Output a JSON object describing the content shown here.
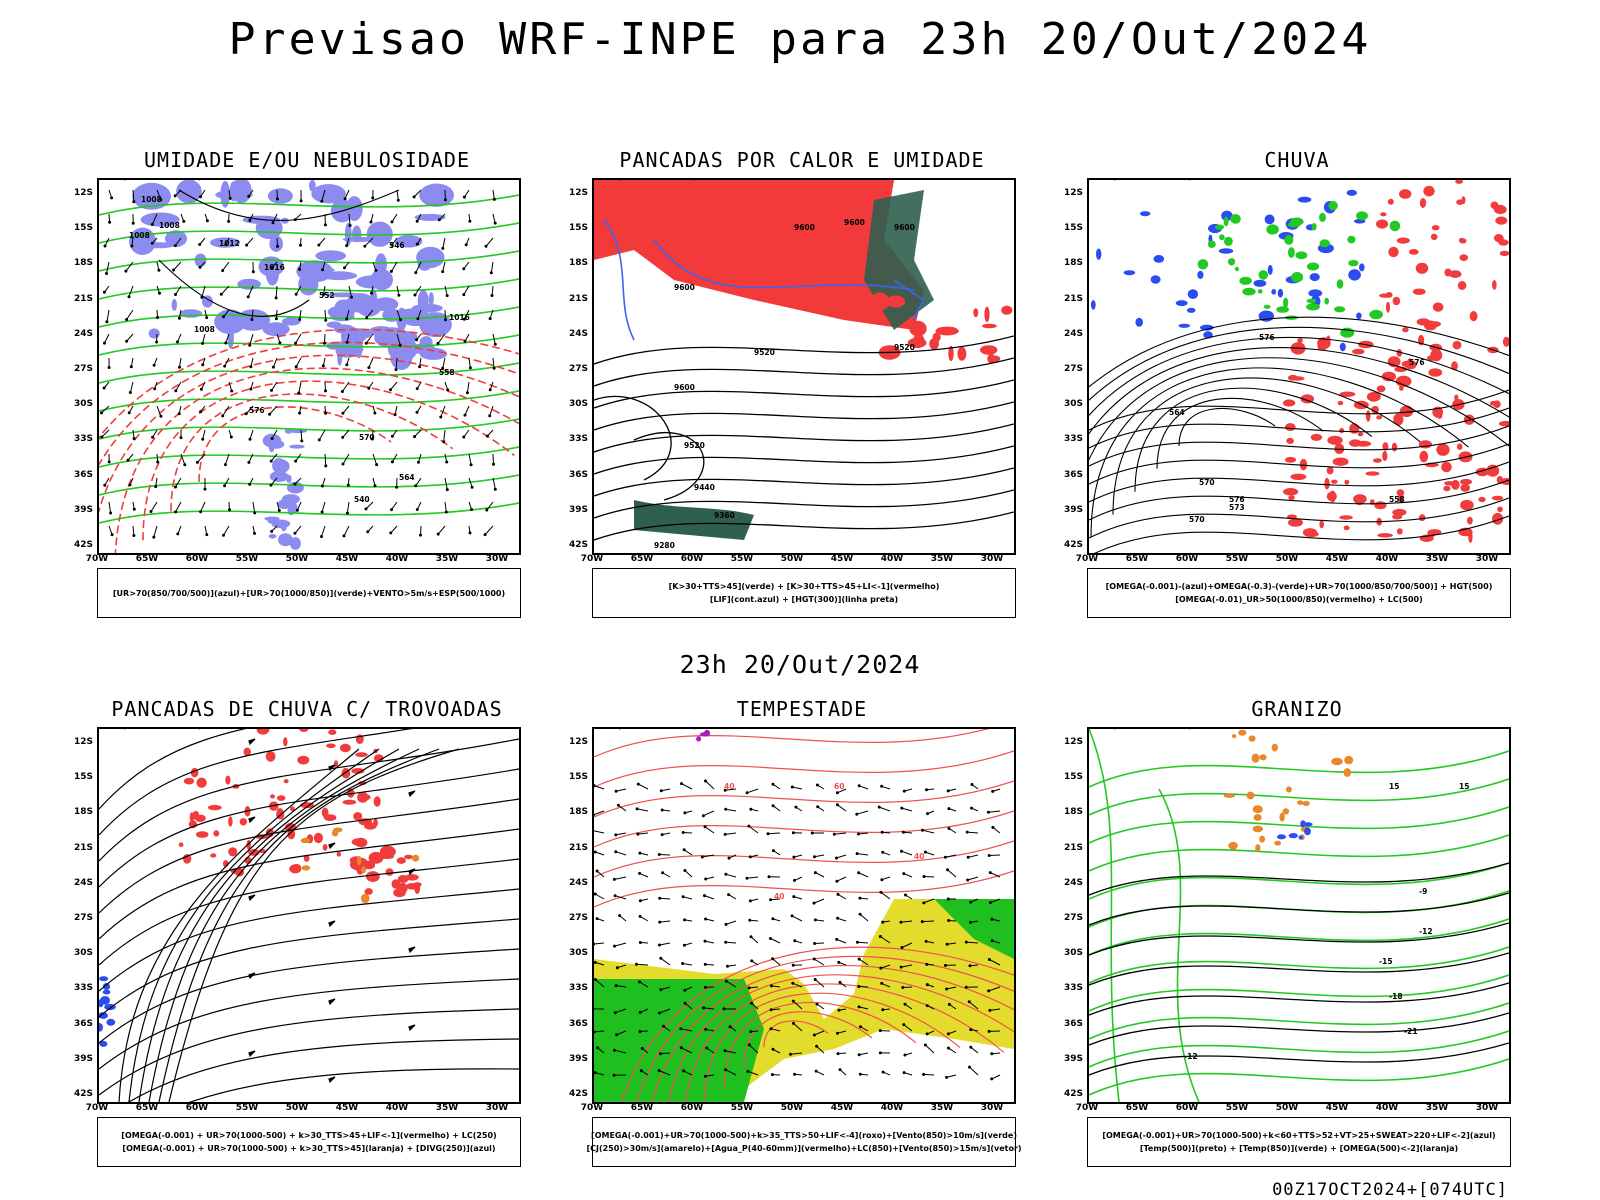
{
  "title": "Previsao WRF-INPE  para 23h 20/Out/2024",
  "middle_title": "23h 20/Out/2024",
  "footer": "00Z17OCT2024+[074UTC]",
  "axes": {
    "lat_labels": [
      "12S",
      "15S",
      "18S",
      "21S",
      "24S",
      "27S",
      "30S",
      "33S",
      "36S",
      "39S",
      "42S"
    ],
    "lon_labels": [
      "70W",
      "65W",
      "60W",
      "55W",
      "50W",
      "45W",
      "40W",
      "35W",
      "30W"
    ]
  },
  "panels": [
    {
      "title": "UMIDADE E/OU NEBULOSIDADE",
      "caption": [
        "[UR>70(850/700/500)](azul)+[UR>70(1000/850)](verde)+VENTO>5m/s+ESP(500/1000)"
      ],
      "contour_labels": [
        "1008",
        "1008",
        "1008",
        "1012",
        "1016",
        "1008",
        "576",
        "570",
        "564",
        "558",
        "552",
        "546",
        "540",
        "1016"
      ],
      "colors": {
        "blue": "#8c8cf0",
        "green": "#22c922",
        "red": "#f03c3c"
      }
    },
    {
      "title": "PANCADAS POR CALOR E UMIDADE",
      "caption": [
        "[K>30+TTS>45](verde) + [K>30+TTS>45+LI<-1](vermelho)",
        "[LIF](cont.azul) + [HGT(300)](linha preta)"
      ],
      "contour_labels": [
        "9600",
        "9600",
        "9600",
        "9600",
        "9520",
        "9520",
        "9600",
        "9520",
        "9440",
        "9360",
        "9280"
      ],
      "colors": {
        "red": "#f23a3a",
        "green": "#2f5f4f",
        "blue": "#3c64f0"
      }
    },
    {
      "title": "CHUVA",
      "caption": [
        "[OMEGA(-0.001)-(azul)+OMEGA(-0.3)-(verde)+UR>70(1000/850/700/500)] + HGT(500)",
        "[OMEGA(-0.01)_UR>50(1000/850)(vermelho) + LC(500)"
      ],
      "contour_labels": [
        "576",
        "576",
        "564",
        "570",
        "576",
        "558",
        "570",
        "573"
      ],
      "colors": {
        "red": "#f03c3c",
        "green": "#22c922",
        "blue": "#2a4cf0"
      }
    },
    {
      "title": "PANCADAS DE CHUVA C/ TROVOADAS",
      "caption": [
        "[OMEGA(-0.001) + UR>70(1000-500) + k>30_TTS>45+LIF<-1](vermelho) + LC(250)",
        "[OMEGA(-0.001) + UR>70(1000-500) + k>30_TTS>45](laranja) + [DIVG(250)](azul)"
      ],
      "contour_labels": [],
      "colors": {
        "red": "#f03c3c",
        "orange": "#e8882a",
        "blue": "#2a4cf0"
      }
    },
    {
      "title": "TEMPESTADE",
      "caption": [
        "[OMEGA(-0.001)+UR>70(1000-500)+k>35_TTS>50+LIF<-4](roxo)+[Vento(850)>10m/s](verde)",
        "[CJ(250)>30m/s](amarelo)+[Agua_P(40-60mm)](vermelho)+LC(850)+[Vento(850)>15m/s](vetor)"
      ],
      "contour_labels": [
        "40",
        "60",
        "40",
        "40"
      ],
      "colors": {
        "yellow": "#e4dc2c",
        "green": "#1fbf1f",
        "red": "#f05050",
        "purple": "#a020c0"
      }
    },
    {
      "title": "GRANIZO",
      "caption": [
        "[OMEGA(-0.001)+UR>70(1000-500)+k<60+TTS>52+VT>25+SWEAT>220+LIF<-2](azul)",
        "[Temp(500)](preto) + [Temp(850)](verde) + [OMEGA(500)<-2](laranja)"
      ],
      "contour_labels": [
        "-9",
        "-12",
        "-15",
        "-18",
        "-21",
        "-12",
        "15",
        "15"
      ],
      "colors": {
        "green": "#22c922",
        "orange": "#e8882a",
        "blue": "#2a4cf0"
      }
    }
  ]
}
